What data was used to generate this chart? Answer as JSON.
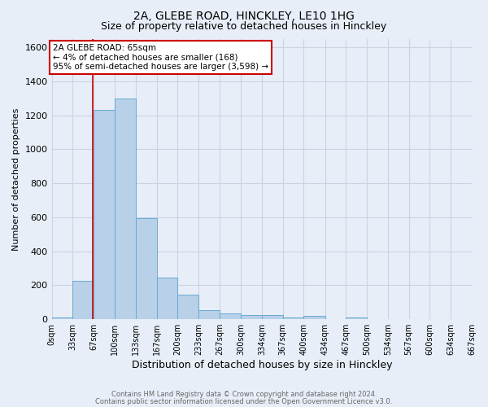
{
  "title": "2A, GLEBE ROAD, HINCKLEY, LE10 1HG",
  "subtitle": "Size of property relative to detached houses in Hinckley",
  "xlabel": "Distribution of detached houses by size in Hinckley",
  "ylabel": "Number of detached properties",
  "footer_line1": "Contains HM Land Registry data © Crown copyright and database right 2024.",
  "footer_line2": "Contains public sector information licensed under the Open Government Licence v3.0.",
  "bin_edges": [
    0,
    33,
    67,
    100,
    133,
    167,
    200,
    233,
    267,
    300,
    334,
    367,
    400,
    434,
    467,
    500,
    534,
    567,
    600,
    634,
    667
  ],
  "bin_counts": [
    10,
    225,
    1230,
    1300,
    595,
    245,
    145,
    52,
    33,
    25,
    25,
    10,
    18,
    0,
    10,
    0,
    0,
    0,
    0,
    0
  ],
  "bar_color": "#b8d0e8",
  "bar_edge_color": "#6aaad4",
  "grid_color": "#c8d4e4",
  "background_color": "#e8eef8",
  "property_size": 65,
  "property_line_color": "#cc0000",
  "annotation_text": "2A GLEBE ROAD: 65sqm\n← 4% of detached houses are smaller (168)\n95% of semi-detached houses are larger (3,598) →",
  "annotation_box_color": "#ffffff",
  "annotation_box_edge": "#cc0000",
  "ylim": [
    0,
    1650
  ],
  "yticks": [
    0,
    200,
    400,
    600,
    800,
    1000,
    1200,
    1400,
    1600
  ],
  "tick_labels": [
    "0sqm",
    "33sqm",
    "67sqm",
    "100sqm",
    "133sqm",
    "167sqm",
    "200sqm",
    "233sqm",
    "267sqm",
    "300sqm",
    "334sqm",
    "367sqm",
    "400sqm",
    "434sqm",
    "467sqm",
    "500sqm",
    "534sqm",
    "567sqm",
    "600sqm",
    "634sqm",
    "667sqm"
  ],
  "title_fontsize": 10,
  "subtitle_fontsize": 9,
  "ylabel_fontsize": 8,
  "xlabel_fontsize": 9,
  "ytick_fontsize": 8,
  "xtick_fontsize": 7,
  "annotation_fontsize": 7.5,
  "footer_fontsize": 6,
  "footer_color": "#666666"
}
